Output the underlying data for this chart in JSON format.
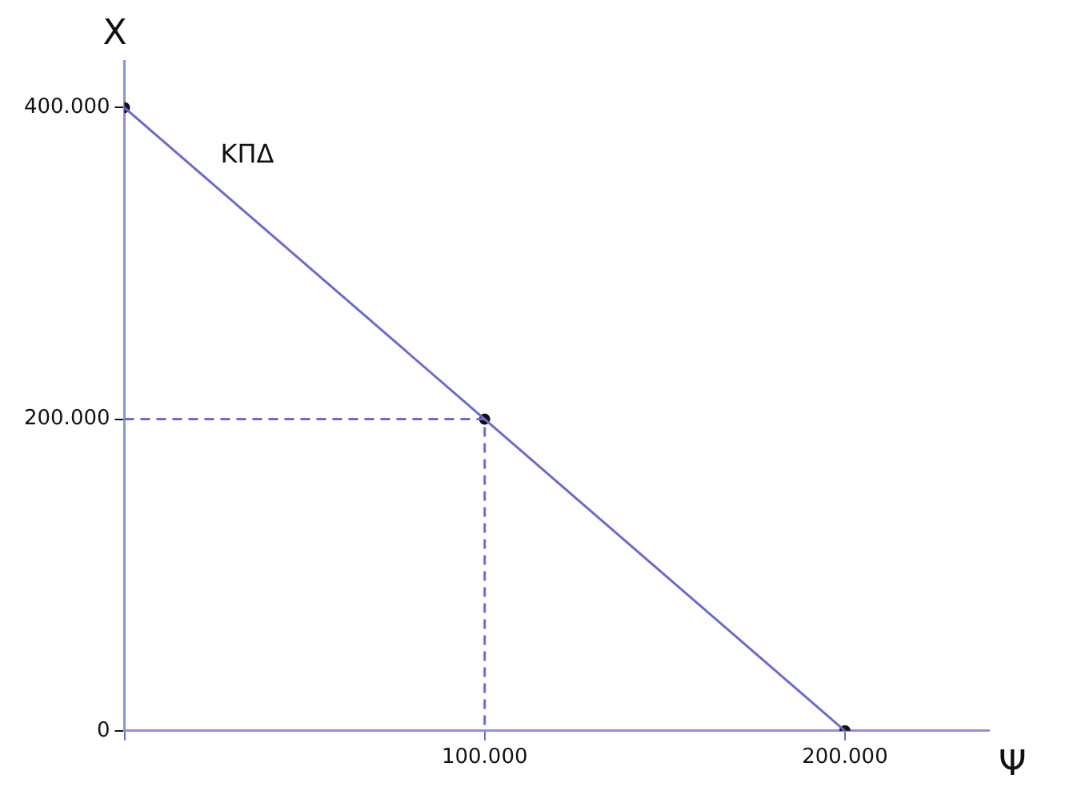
{
  "chart_data": {
    "type": "line",
    "xlabel": "Ψ",
    "ylabel": "X",
    "xlim": [
      0,
      240000
    ],
    "ylim": [
      0,
      430000
    ],
    "xticks": [
      {
        "value": 0,
        "label": null
      },
      {
        "value": 100000,
        "label": "100.000"
      },
      {
        "value": 200000,
        "label": "200.000"
      }
    ],
    "yticks": [
      {
        "value": 0,
        "label": "0"
      },
      {
        "value": 200000,
        "label": "200.000"
      },
      {
        "value": 400000,
        "label": "400.000"
      }
    ],
    "grid": false,
    "legend": false,
    "series": [
      {
        "name": "ΚΠΔ",
        "color": "#6b6bd3",
        "x": [
          0,
          200000
        ],
        "values": [
          400000,
          0
        ],
        "marker": "none",
        "line_style": "solid"
      },
      {
        "type": "line",
        "color": "#6b6bd3",
        "x": [
          0,
          100000,
          100000
        ],
        "values": [
          200000,
          200000,
          0
        ],
        "marker": "none",
        "line_style": "dashed"
      },
      {
        "type": "scatter",
        "color": "#111111",
        "x": [
          0,
          100000,
          200000
        ],
        "values": [
          400000,
          200000,
          0
        ],
        "marker": "circle"
      }
    ]
  }
}
